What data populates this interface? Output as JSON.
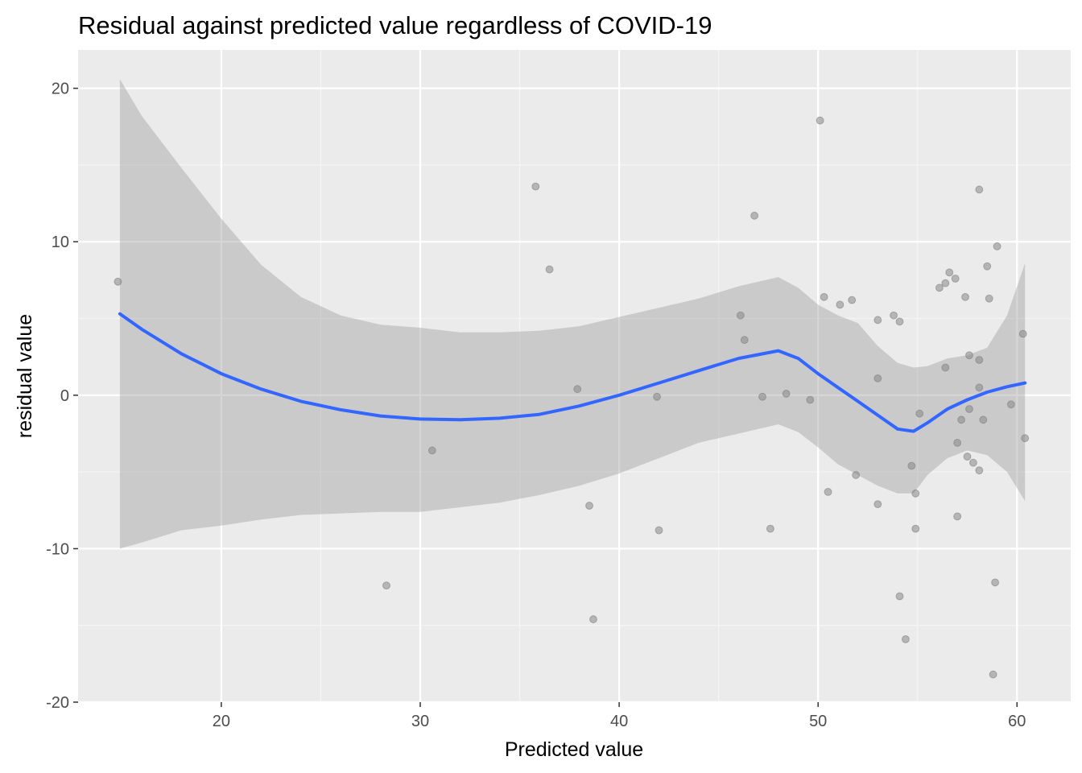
{
  "colors": {
    "panel_background": "#EBEBEB",
    "grid_major": "#FFFFFF",
    "grid_minor": "#F5F5F5",
    "smooth_line": "#3366FF",
    "ribbon": "#999999",
    "points": "#7F7F7F",
    "tick_text": "#4D4D4D",
    "tick_mark": "#333333"
  },
  "chart_data": {
    "type": "scatter",
    "title": "Residual against predicted value regardless of COVID-19",
    "xlabel": "Predicted value",
    "ylabel": "residual value",
    "xlim": [
      12.8,
      62.7
    ],
    "ylim": [
      -20.0,
      22.5
    ],
    "x_ticks": [
      20,
      30,
      40,
      50,
      60
    ],
    "y_ticks": [
      -20,
      -10,
      0,
      10,
      20
    ],
    "x_tick_labels": [
      "20",
      "30",
      "40",
      "50",
      "60"
    ],
    "y_tick_labels": [
      "-20",
      "-10",
      "0",
      "10",
      "20"
    ],
    "grid": true,
    "legend": "none",
    "points": [
      {
        "x": 14.8,
        "y": 7.4
      },
      {
        "x": 28.3,
        "y": -12.4
      },
      {
        "x": 30.6,
        "y": -3.6
      },
      {
        "x": 35.8,
        "y": 13.6
      },
      {
        "x": 36.5,
        "y": 8.2
      },
      {
        "x": 37.9,
        "y": 0.4
      },
      {
        "x": 38.5,
        "y": -7.2
      },
      {
        "x": 38.7,
        "y": -14.6
      },
      {
        "x": 41.9,
        "y": -0.1
      },
      {
        "x": 42.0,
        "y": -8.8
      },
      {
        "x": 46.1,
        "y": 5.2
      },
      {
        "x": 46.3,
        "y": 3.6
      },
      {
        "x": 46.8,
        "y": 11.7
      },
      {
        "x": 47.2,
        "y": -0.1
      },
      {
        "x": 47.6,
        "y": -8.7
      },
      {
        "x": 48.4,
        "y": 0.1
      },
      {
        "x": 49.6,
        "y": -0.3
      },
      {
        "x": 50.1,
        "y": 17.9
      },
      {
        "x": 50.3,
        "y": 6.4
      },
      {
        "x": 50.5,
        "y": -6.3
      },
      {
        "x": 51.1,
        "y": 5.9
      },
      {
        "x": 51.7,
        "y": 6.2
      },
      {
        "x": 51.9,
        "y": -5.2
      },
      {
        "x": 53.0,
        "y": 4.9
      },
      {
        "x": 53.0,
        "y": 1.1
      },
      {
        "x": 53.0,
        "y": -7.1
      },
      {
        "x": 53.8,
        "y": 5.2
      },
      {
        "x": 54.1,
        "y": 4.8
      },
      {
        "x": 54.1,
        "y": -13.1
      },
      {
        "x": 54.4,
        "y": -15.9
      },
      {
        "x": 54.7,
        "y": -4.6
      },
      {
        "x": 54.9,
        "y": -8.7
      },
      {
        "x": 54.9,
        "y": -6.4
      },
      {
        "x": 55.1,
        "y": -1.2
      },
      {
        "x": 56.1,
        "y": 7.0
      },
      {
        "x": 56.4,
        "y": 7.3
      },
      {
        "x": 56.4,
        "y": 1.8
      },
      {
        "x": 56.6,
        "y": 8.0
      },
      {
        "x": 56.9,
        "y": 7.6
      },
      {
        "x": 57.0,
        "y": -3.1
      },
      {
        "x": 57.0,
        "y": -7.9
      },
      {
        "x": 57.2,
        "y": -1.6
      },
      {
        "x": 57.4,
        "y": 6.4
      },
      {
        "x": 57.5,
        "y": -4.0
      },
      {
        "x": 57.6,
        "y": 2.6
      },
      {
        "x": 57.6,
        "y": -0.9
      },
      {
        "x": 57.8,
        "y": -4.4
      },
      {
        "x": 58.1,
        "y": 13.4
      },
      {
        "x": 58.1,
        "y": 2.3
      },
      {
        "x": 58.1,
        "y": 0.5
      },
      {
        "x": 58.1,
        "y": -4.9
      },
      {
        "x": 58.3,
        "y": -1.6
      },
      {
        "x": 58.5,
        "y": 8.4
      },
      {
        "x": 58.6,
        "y": 6.3
      },
      {
        "x": 58.8,
        "y": -18.2
      },
      {
        "x": 58.9,
        "y": -12.2
      },
      {
        "x": 59.0,
        "y": 9.7
      },
      {
        "x": 59.7,
        "y": -0.6
      },
      {
        "x": 60.3,
        "y": 4.0
      },
      {
        "x": 60.4,
        "y": -2.8
      }
    ],
    "smooth_line": {
      "x": [
        14.9,
        16.0,
        18.0,
        20.0,
        22.0,
        24.0,
        26.0,
        28.0,
        30.0,
        32.0,
        34.0,
        36.0,
        38.0,
        40.0,
        42.0,
        44.0,
        46.0,
        48.0,
        49.0,
        50.0,
        51.0,
        52.0,
        53.0,
        54.0,
        54.8,
        55.5,
        56.5,
        57.5,
        58.5,
        59.5,
        60.4
      ],
      "y": [
        5.3,
        4.3,
        2.7,
        1.4,
        0.4,
        -0.4,
        -0.95,
        -1.35,
        -1.55,
        -1.6,
        -1.5,
        -1.25,
        -0.7,
        0.0,
        0.8,
        1.6,
        2.4,
        2.9,
        2.4,
        1.4,
        0.5,
        -0.4,
        -1.3,
        -2.2,
        -2.35,
        -1.8,
        -0.9,
        -0.3,
        0.2,
        0.55,
        0.8
      ]
    },
    "confidence_band": {
      "x": [
        14.9,
        16.0,
        18.0,
        20.0,
        22.0,
        24.0,
        26.0,
        28.0,
        30.0,
        32.0,
        34.0,
        36.0,
        38.0,
        40.0,
        42.0,
        44.0,
        46.0,
        48.0,
        49.0,
        50.0,
        51.0,
        52.0,
        53.0,
        54.0,
        54.8,
        55.5,
        56.5,
        57.5,
        58.5,
        59.5,
        60.4
      ],
      "upper": [
        20.6,
        18.2,
        14.8,
        11.5,
        8.5,
        6.4,
        5.2,
        4.6,
        4.4,
        4.1,
        4.1,
        4.2,
        4.5,
        5.1,
        5.7,
        6.3,
        7.1,
        7.7,
        7.0,
        5.9,
        5.2,
        4.7,
        3.2,
        2.1,
        1.8,
        1.9,
        2.4,
        2.6,
        3.1,
        5.2,
        8.6
      ],
      "lower": [
        -10.0,
        -9.6,
        -8.8,
        -8.5,
        -8.1,
        -7.8,
        -7.7,
        -7.6,
        -7.6,
        -7.3,
        -7.0,
        -6.5,
        -5.9,
        -5.1,
        -4.1,
        -3.1,
        -2.5,
        -1.9,
        -2.4,
        -3.4,
        -4.5,
        -5.2,
        -5.9,
        -6.4,
        -6.4,
        -5.2,
        -4.1,
        -3.6,
        -3.9,
        -5.0,
        -6.9
      ]
    }
  }
}
